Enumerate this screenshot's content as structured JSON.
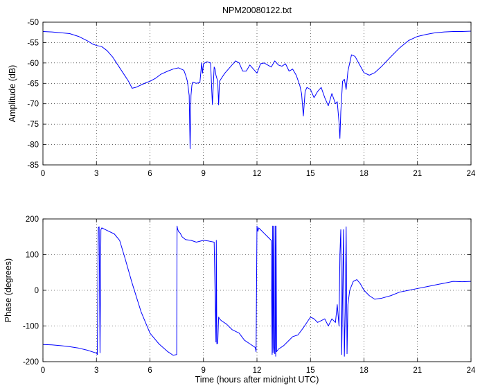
{
  "title": "NPM20080122.txt",
  "colors": {
    "series": "#0000ff",
    "axes": "#000000",
    "background": "#ffffff"
  },
  "chart_data": [
    {
      "type": "line",
      "title": "NPM20080122.txt",
      "xlabel": "",
      "ylabel": "Amplitude (dB)",
      "xlim": [
        0,
        24
      ],
      "ylim": [
        -85,
        -50
      ],
      "xticks": [
        0,
        3,
        6,
        9,
        12,
        15,
        18,
        21,
        24
      ],
      "yticks": [
        -85,
        -80,
        -75,
        -70,
        -65,
        -60,
        -55,
        -50
      ],
      "grid": true,
      "series": [
        {
          "x": [
            0,
            0.5,
            1,
            1.5,
            2,
            2.5,
            2.8,
            3,
            3.3,
            3.6,
            3.9,
            4.2,
            4.5,
            4.8,
            5,
            5.2,
            5.5,
            5.8,
            6,
            6.3,
            6.6,
            7,
            7.3,
            7.6,
            7.9,
            8,
            8.1,
            8.2,
            8.25,
            8.3,
            8.35,
            8.4,
            8.6,
            8.8,
            8.9,
            8.95,
            9,
            9.2,
            9.4,
            9.5,
            9.6,
            9.65,
            9.7,
            9.8,
            9.85,
            9.9,
            10,
            10.2,
            10.4,
            10.6,
            10.8,
            11,
            11.2,
            11.4,
            11.6,
            11.8,
            12,
            12.2,
            12.4,
            12.6,
            12.8,
            13,
            13.2,
            13.4,
            13.6,
            13.8,
            14,
            14.2,
            14.4,
            14.5,
            14.6,
            14.7,
            14.8,
            15,
            15.2,
            15.4,
            15.6,
            15.8,
            16,
            16.2,
            16.4,
            16.5,
            16.6,
            16.65,
            16.7,
            16.8,
            16.9,
            17,
            17.1,
            17.3,
            17.5,
            17.7,
            18,
            18.3,
            18.6,
            19,
            19.5,
            20,
            20.5,
            21,
            21.5,
            22,
            22.5,
            23,
            23.5,
            24
          ],
          "y": [
            -52.3,
            -52.4,
            -52.6,
            -52.8,
            -53.5,
            -54.6,
            -55.4,
            -55.7,
            -56,
            -57,
            -58.5,
            -60.5,
            -62.5,
            -64.5,
            -66.2,
            -66,
            -65.4,
            -64.8,
            -64.5,
            -63.8,
            -62.8,
            -62,
            -61.5,
            -61.2,
            -61.8,
            -63,
            -64.5,
            -68,
            -81,
            -68,
            -65.5,
            -64.7,
            -65,
            -64.8,
            -60,
            -62.5,
            -60.2,
            -59.7,
            -60,
            -70.2,
            -61,
            -61.5,
            -63,
            -64.5,
            -70.3,
            -64.5,
            -63.8,
            -62.5,
            -61.5,
            -60.5,
            -59.5,
            -60,
            -62,
            -62,
            -60.5,
            -61.5,
            -62.5,
            -60.2,
            -60,
            -60.5,
            -61,
            -59.5,
            -60.5,
            -60.8,
            -60.2,
            -62,
            -61.5,
            -63,
            -65.5,
            -67.5,
            -73,
            -67,
            -66,
            -66.5,
            -68.5,
            -67,
            -66,
            -68.5,
            -70.5,
            -67.5,
            -70,
            -69.5,
            -74.5,
            -78.5,
            -72,
            -64.5,
            -64,
            -66.5,
            -62,
            -58,
            -58.4,
            -60,
            -62.4,
            -63,
            -62.4,
            -60.8,
            -58.5,
            -56.3,
            -54.5,
            -53.5,
            -53,
            -52.6,
            -52.4,
            -52.3,
            -52.3,
            -52.2
          ]
        }
      ]
    },
    {
      "type": "line",
      "title": "",
      "xlabel": "Time (hours after midnight UTC)",
      "ylabel": "Phase (degrees)",
      "xlim": [
        0,
        24
      ],
      "ylim": [
        -200,
        200
      ],
      "xticks": [
        0,
        3,
        6,
        9,
        12,
        15,
        18,
        21,
        24
      ],
      "yticks": [
        -200,
        -100,
        0,
        100,
        200
      ],
      "grid": true,
      "series": [
        {
          "x": [
            0,
            0.5,
            1,
            1.5,
            2,
            2.5,
            3,
            3.05,
            3.1,
            3.15,
            3.2,
            3.25,
            3.3,
            3.5,
            4,
            4.3,
            4.6,
            5,
            5.5,
            6,
            6.5,
            7,
            7.3,
            7.5,
            7.52,
            7.55,
            7.6,
            7.7,
            7.8,
            8,
            8.3,
            8.6,
            9,
            9.3,
            9.6,
            9.7,
            9.72,
            9.75,
            9.8,
            9.85,
            9.9,
            10,
            10.3,
            10.6,
            11,
            11.3,
            11.6,
            11.9,
            11.95,
            12,
            12.05,
            12.1,
            12.3,
            12.6,
            12.8,
            12.85,
            12.88,
            12.9,
            12.93,
            12.96,
            13,
            13.02,
            13.05,
            13.07,
            13.1,
            13.2,
            13.5,
            13.8,
            14,
            14.3,
            14.6,
            14.8,
            15,
            15.2,
            15.4,
            15.6,
            15.8,
            16,
            16.2,
            16.4,
            16.5,
            16.6,
            16.65,
            16.7,
            16.75,
            16.8,
            16.85,
            16.9,
            16.95,
            17,
            17.05,
            17.1,
            17.2,
            17.4,
            17.6,
            17.8,
            18,
            18.3,
            18.6,
            19,
            19.5,
            20,
            20.5,
            21,
            21.5,
            22,
            22.5,
            23,
            23.5,
            24
          ],
          "y": [
            -152,
            -153,
            -155,
            -158,
            -162,
            -168,
            -176,
            -180,
            175,
            178,
            -175,
            170,
            175,
            170,
            158,
            140,
            90,
            20,
            -60,
            -120,
            -150,
            -172,
            -182,
            -180,
            180,
            172,
            165,
            160,
            150,
            142,
            140,
            135,
            140,
            138,
            135,
            -145,
            140,
            -150,
            -148,
            -75,
            -80,
            -85,
            -95,
            -110,
            -120,
            -140,
            -150,
            -160,
            -172,
            180,
            165,
            175,
            165,
            150,
            140,
            -180,
            180,
            -175,
            180,
            -160,
            -178,
            180,
            -185,
            180,
            -172,
            -165,
            -155,
            -140,
            -130,
            -125,
            -105,
            -90,
            -75,
            -80,
            -90,
            -85,
            -80,
            -100,
            -80,
            -90,
            -40,
            -100,
            100,
            170,
            -180,
            -10,
            170,
            -185,
            -60,
            178,
            -178,
            -40,
            0,
            25,
            30,
            18,
            0,
            -15,
            -25,
            -22,
            -15,
            -5,
            0,
            5,
            10,
            15,
            20,
            25,
            24,
            25
          ]
        }
      ]
    }
  ]
}
